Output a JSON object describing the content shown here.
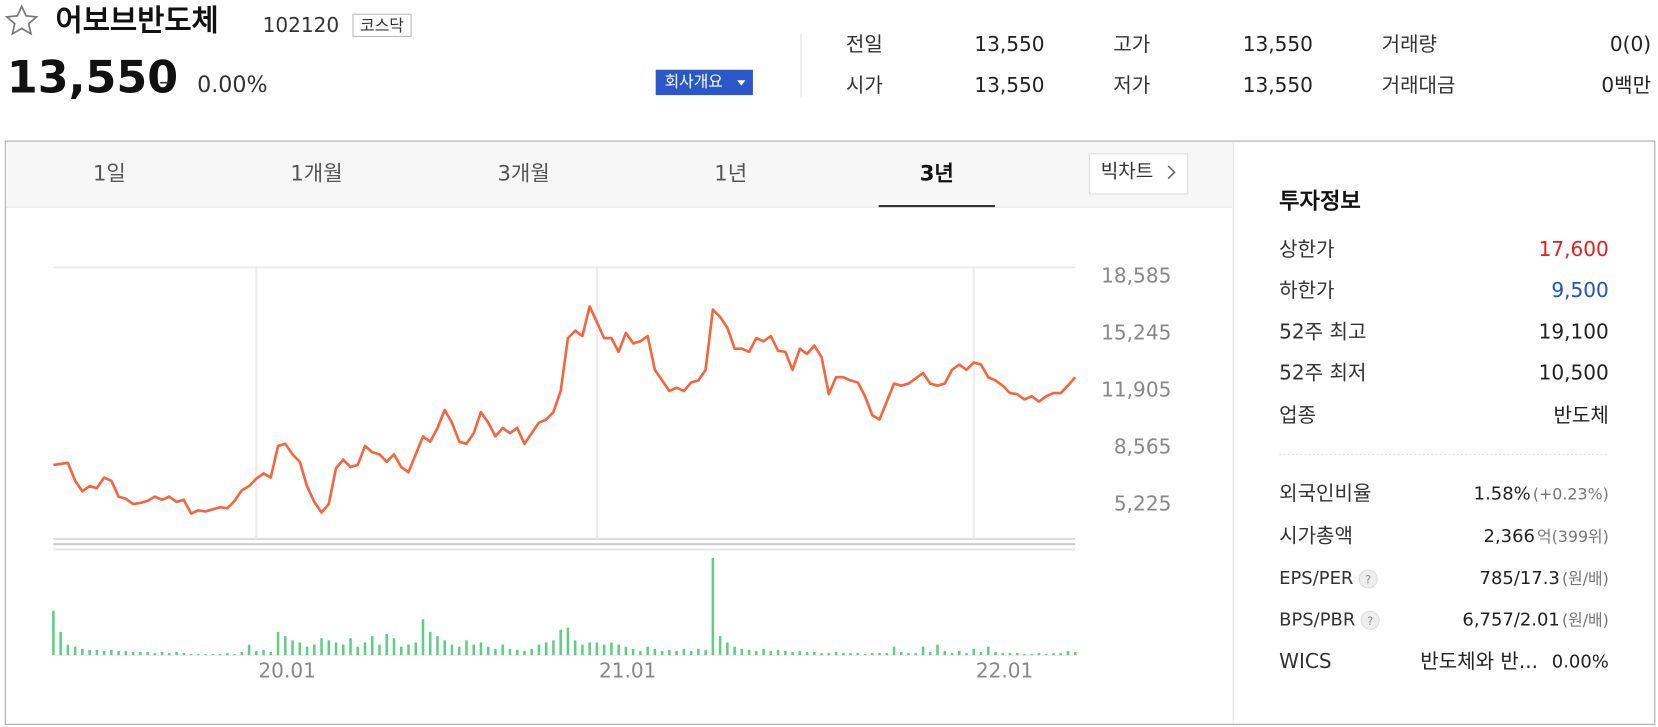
{
  "header": {
    "name": "어보브반도체",
    "code": "102120",
    "market": "코스닥",
    "price": "13,550",
    "change": "–",
    "change_rate": "0.00%",
    "button": "회사개요"
  },
  "summary": {
    "rows": [
      [
        {
          "label": "전일",
          "value": "13,550"
        },
        {
          "label": "고가",
          "value": "13,550"
        },
        {
          "label": "거래량",
          "value": "0(0)"
        }
      ],
      [
        {
          "label": "시가",
          "value": "13,550"
        },
        {
          "label": "저가",
          "value": "13,550"
        },
        {
          "label": "거래대금",
          "value": "0백만"
        }
      ]
    ]
  },
  "tabs": {
    "items": [
      "1일",
      "1개월",
      "3개월",
      "1년",
      "3년"
    ],
    "selected": 4,
    "big_chart": "빅차트"
  },
  "chart_data": [
    {
      "type": "line",
      "color": "#f5663f",
      "values": [
        7575,
        7637,
        7699,
        6648,
        6029,
        6338,
        6215,
        6833,
        6648,
        5720,
        5596,
        5287,
        5349,
        5472,
        5720,
        5534,
        5720,
        5411,
        5534,
        4730,
        4916,
        4854,
        4978,
        5101,
        5040,
        5472,
        6091,
        6338,
        6771,
        7081,
        6833,
        8689,
        8812,
        8194,
        7761,
        6338,
        5411,
        4792,
        5287,
        7390,
        7885,
        7452,
        7575,
        8689,
        8318,
        8194,
        7761,
        8194,
        7452,
        7142,
        8194,
        9245,
        8936,
        9740,
        10792,
        10049,
        8936,
        8812,
        9431,
        10668,
        10049,
        9245,
        9740,
        9431,
        9740,
        8812,
        9431,
        10049,
        10235,
        10668,
        11905,
        14997,
        15430,
        15121,
        16853,
        15925,
        14997,
        14997,
        14193,
        15307,
        14688,
        14812,
        15121,
        13142,
        12523,
        11905,
        12090,
        11905,
        12400,
        12523,
        13142,
        16667,
        16234,
        15616,
        14379,
        14379,
        14193,
        14997,
        14812,
        15121,
        14255,
        14193,
        13142,
        14379,
        14070,
        14564,
        13884,
        11719,
        12709,
        12709,
        12523,
        12400,
        11596,
        10482,
        10235,
        11286,
        12338,
        12214,
        12338,
        12647,
        12956,
        12338,
        12214,
        12338,
        13142,
        13451,
        13142,
        13575,
        13451,
        12709,
        12523,
        12214,
        11781,
        11719,
        11410,
        11596,
        11286,
        11596,
        11781,
        11781,
        12214,
        12709
      ],
      "xlim": [
        0,
        141
      ],
      "ylim": [
        3246,
        19142
      ],
      "yticks": [
        {
          "value": 18585,
          "label": "18,585"
        },
        {
          "value": 15245,
          "label": "15,245"
        },
        {
          "value": 11905,
          "label": "11,905"
        },
        {
          "value": 8565,
          "label": "8,565"
        },
        {
          "value": 5225,
          "label": "5,225"
        }
      ],
      "xticks": [
        {
          "value": 28,
          "label": "20.01"
        },
        {
          "value": 75,
          "label": "21.01"
        },
        {
          "value": 127,
          "label": "22.01"
        }
      ],
      "grid": "x"
    },
    {
      "type": "bar",
      "color": "#5ccf87",
      "xlim": [
        0,
        141
      ],
      "ylim": [
        0,
        95
      ],
      "values": [
        42,
        22,
        10,
        8,
        6,
        5,
        5,
        4,
        5,
        4,
        4,
        3,
        3,
        3,
        2,
        3,
        2,
        3,
        2,
        1,
        1,
        1,
        1,
        1,
        2,
        1,
        3,
        10,
        4,
        5,
        3,
        22,
        18,
        14,
        12,
        8,
        10,
        16,
        14,
        12,
        10,
        16,
        8,
        12,
        18,
        10,
        20,
        16,
        8,
        10,
        12,
        34,
        22,
        18,
        14,
        10,
        8,
        14,
        10,
        12,
        8,
        6,
        10,
        6,
        5,
        4,
        6,
        10,
        12,
        14,
        24,
        26,
        14,
        10,
        12,
        12,
        10,
        12,
        10,
        8,
        6,
        4,
        8,
        6,
        4,
        5,
        4,
        6,
        4,
        6,
        5,
        92,
        18,
        12,
        8,
        6,
        5,
        4,
        6,
        4,
        5,
        4,
        3,
        4,
        3,
        3,
        2,
        2,
        3,
        2,
        2,
        2,
        1,
        2,
        2,
        2,
        8,
        3,
        2,
        2,
        8,
        3,
        10,
        4,
        2,
        4,
        2,
        6,
        3,
        8,
        3,
        2,
        2,
        2,
        1,
        1,
        2,
        1,
        2,
        2,
        4,
        3
      ]
    }
  ],
  "invest": {
    "title": "투자정보",
    "rows": [
      {
        "label": "상한가",
        "value": "17,600",
        "color": "#e0201f"
      },
      {
        "label": "하한가",
        "value": "9,500",
        "color": "#1f4ed0"
      },
      {
        "label": "52주 최고",
        "value": "19,100",
        "color": "#222222"
      },
      {
        "label": "52주 최저",
        "value": "10,500",
        "color": "#222222"
      },
      {
        "label": "업종",
        "value": "반도체",
        "color": "#222222"
      }
    ],
    "rows2": [
      {
        "label": "외국인비율",
        "value": "1.58%",
        "note": "(+0.23%)"
      },
      {
        "label": "시가총액",
        "value": "2,366",
        "note": "억(399위)"
      },
      {
        "label": "EPS/PER",
        "help": "?",
        "value": "785/17.3",
        "note": "(원/배)"
      },
      {
        "label": "BPS/PBR",
        "help": "?",
        "value": "6,757/2.01",
        "note": "(원/배)"
      },
      {
        "label": "WICS",
        "value": "반도체와 반...",
        "extra": "0.00%"
      }
    ]
  }
}
